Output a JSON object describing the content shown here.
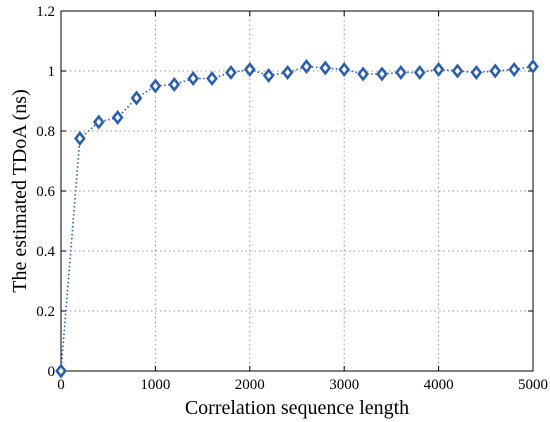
{
  "chart_data": {
    "type": "line",
    "title": "",
    "xlabel": "Correlation sequence length",
    "ylabel": "The estimated TDoA (ns)",
    "xlim": [
      0,
      5000
    ],
    "ylim": [
      0,
      1.2
    ],
    "xticks": [
      0,
      1000,
      2000,
      3000,
      4000,
      5000
    ],
    "xtick_labels": [
      "0",
      "1000",
      "2000",
      "3000",
      "4000",
      "5000"
    ],
    "yticks": [
      0,
      0.2,
      0.4,
      0.6,
      0.8,
      1,
      1.2
    ],
    "ytick_labels": [
      "0",
      "0.2",
      "0.4",
      "0.6",
      "0.8",
      "1",
      "1.2"
    ],
    "grid": true,
    "series": [
      {
        "color": "#2b5fae",
        "marker": "diamond",
        "line_style": "dotted",
        "x": [
          0,
          200,
          400,
          600,
          800,
          1000,
          1200,
          1400,
          1600,
          1800,
          2000,
          2200,
          2400,
          2600,
          2800,
          3000,
          3200,
          3400,
          3600,
          3800,
          4000,
          4200,
          4400,
          4600,
          4800,
          5000
        ],
        "y": [
          0,
          0.775,
          0.83,
          0.845,
          0.91,
          0.95,
          0.955,
          0.975,
          0.975,
          0.995,
          1.005,
          0.985,
          0.995,
          1.015,
          1.01,
          1.005,
          0.99,
          0.99,
          0.995,
          0.995,
          1.005,
          1.0,
          0.995,
          1.0,
          1.005,
          1.015
        ]
      }
    ]
  }
}
